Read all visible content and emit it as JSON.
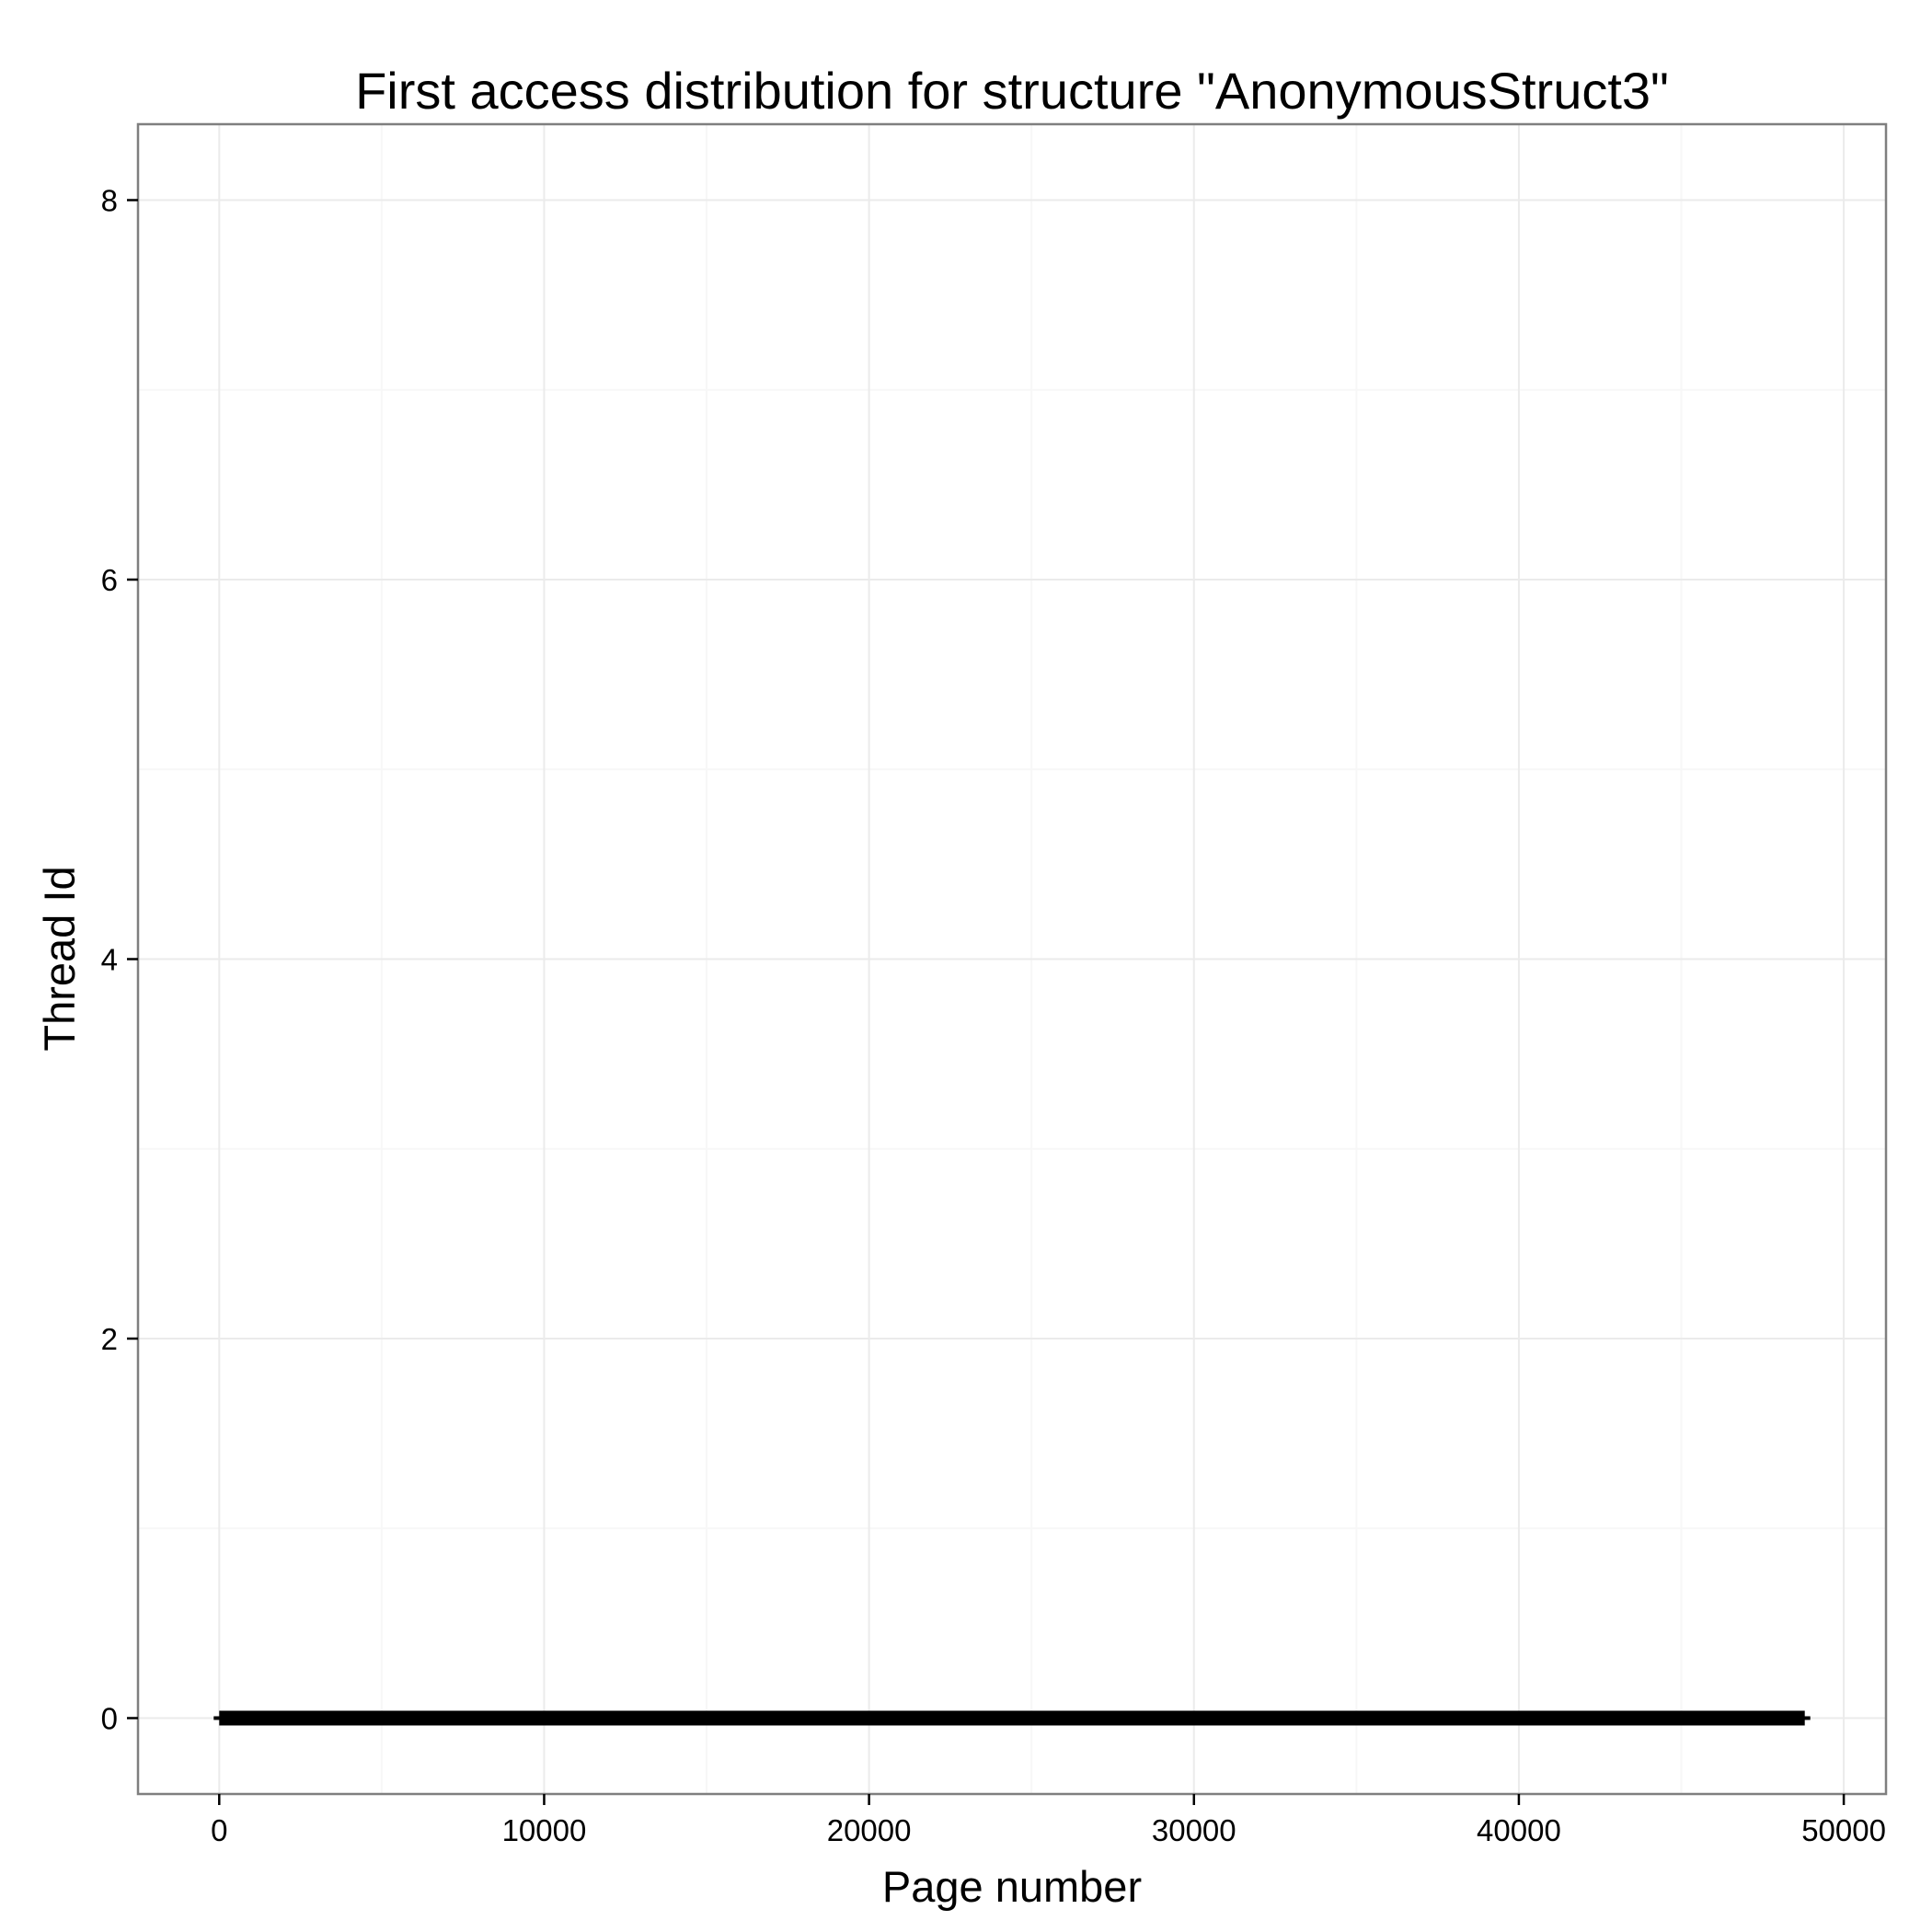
{
  "chart_data": {
    "type": "scatter",
    "title": "First access distribution for structure \"AnonymousStruct3\"",
    "xlabel": "Page number",
    "ylabel": "Thread Id",
    "xlim": [
      -2500,
      51300
    ],
    "ylim": [
      -0.4,
      8.4
    ],
    "x_ticks": [
      0,
      10000,
      20000,
      30000,
      40000,
      50000
    ],
    "x_tick_labels": [
      "0",
      "10000",
      "20000",
      "30000",
      "40000",
      "50000"
    ],
    "x_minor_ticks": [
      5000,
      15000,
      25000,
      35000,
      45000
    ],
    "y_ticks": [
      0,
      2,
      4,
      6,
      8
    ],
    "y_tick_labels": [
      "0",
      "2",
      "4",
      "6",
      "8"
    ],
    "y_minor_ticks": [
      1,
      3,
      5,
      7
    ],
    "grid": true,
    "series": [
      {
        "x_range": [
          0,
          48800
        ],
        "y": 0,
        "color": "#000000"
      }
    ]
  }
}
